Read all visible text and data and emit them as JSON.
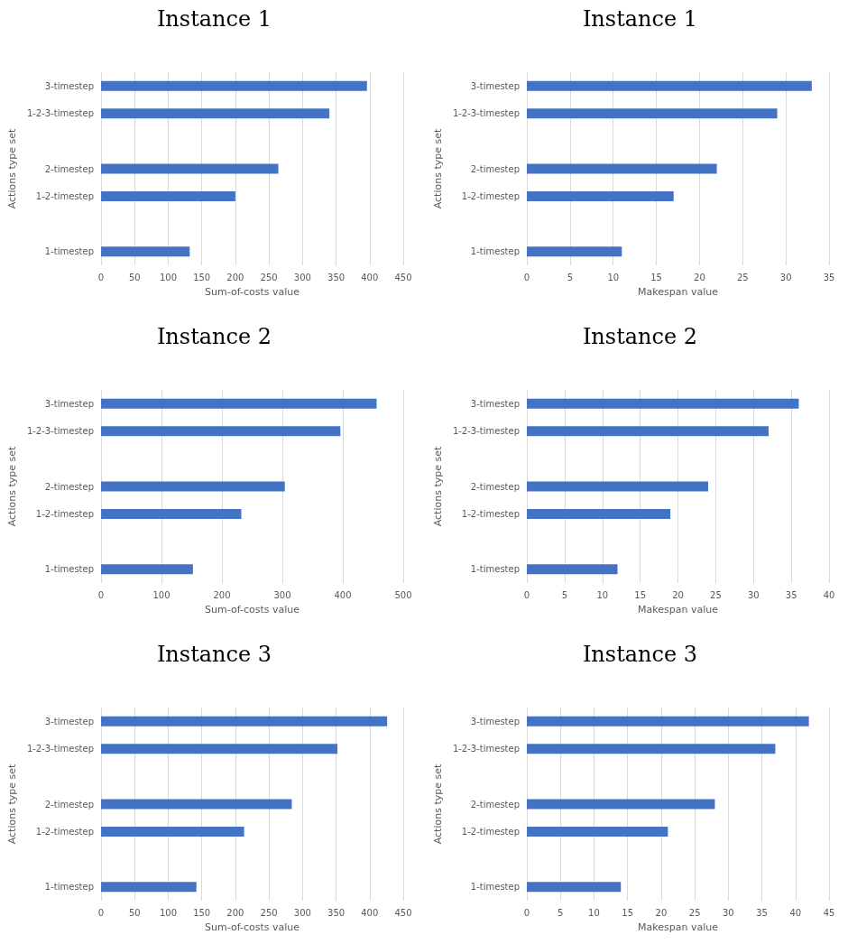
{
  "chart_data": [
    {
      "type": "bar",
      "orientation": "horizontal",
      "title": "Instance 1",
      "xlabel": "Sum-of-costs value",
      "ylabel": "Actions type set",
      "categories": [
        "3-timestep",
        "1-2-3-timestep",
        null,
        "2-timestep",
        "1-2-timestep",
        null,
        "1-timestep"
      ],
      "values": [
        396,
        340,
        null,
        264,
        200,
        null,
        132
      ],
      "color": "#4472c4",
      "xlim": [
        0,
        450
      ],
      "xticks": [
        0,
        50,
        100,
        150,
        200,
        250,
        300,
        350,
        400,
        450
      ],
      "grid": "x"
    },
    {
      "type": "bar",
      "orientation": "horizontal",
      "title": "Instance 1",
      "xlabel": "Makespan value",
      "ylabel": "Actions type set",
      "categories": [
        "3-timestep",
        "1-2-3-timestep",
        null,
        "2-timestep",
        "1-2-timestep",
        null,
        "1-timestep"
      ],
      "values": [
        33,
        29,
        null,
        22,
        17,
        null,
        11
      ],
      "color": "#4472c4",
      "xlim": [
        0,
        35
      ],
      "xticks": [
        0,
        5,
        10,
        15,
        20,
        25,
        30,
        35
      ],
      "grid": "x"
    },
    {
      "type": "bar",
      "orientation": "horizontal",
      "title": "Instance 2",
      "xlabel": "Sum-of-costs value",
      "ylabel": "Actions type set",
      "categories": [
        "3-timestep",
        "1-2-3-timestep",
        null,
        "2-timestep",
        "1-2-timestep",
        null,
        "1-timestep"
      ],
      "values": [
        456,
        396,
        null,
        304,
        232,
        null,
        152
      ],
      "color": "#4472c4",
      "xlim": [
        0,
        500
      ],
      "xticks": [
        0,
        100,
        200,
        300,
        400,
        500
      ],
      "grid": "x"
    },
    {
      "type": "bar",
      "orientation": "horizontal",
      "title": "Instance 2",
      "xlabel": "Makespan value",
      "ylabel": "Actions type set",
      "categories": [
        "3-timestep",
        "1-2-3-timestep",
        null,
        "2-timestep",
        "1-2-timestep",
        null,
        "1-timestep"
      ],
      "values": [
        36,
        32,
        null,
        24,
        19,
        null,
        12
      ],
      "color": "#4472c4",
      "xlim": [
        0,
        40
      ],
      "xticks": [
        0,
        5,
        10,
        15,
        20,
        25,
        30,
        35,
        40
      ],
      "grid": "x"
    },
    {
      "type": "bar",
      "orientation": "horizontal",
      "title": "Instance 3",
      "xlabel": "Sum-of-costs value",
      "ylabel": "Actions type set",
      "categories": [
        "3-timestep",
        "1-2-3-timestep",
        null,
        "2-timestep",
        "1-2-timestep",
        null,
        "1-timestep"
      ],
      "values": [
        426,
        352,
        null,
        284,
        213,
        null,
        142
      ],
      "color": "#4472c4",
      "xlim": [
        0,
        450
      ],
      "xticks": [
        0,
        50,
        100,
        150,
        200,
        250,
        300,
        350,
        400,
        450
      ],
      "grid": "x"
    },
    {
      "type": "bar",
      "orientation": "horizontal",
      "title": "Instance 3",
      "xlabel": "Makespan value",
      "ylabel": "Actions type set",
      "categories": [
        "3-timestep",
        "1-2-3-timestep",
        null,
        "2-timestep",
        "1-2-timestep",
        null,
        "1-timestep"
      ],
      "values": [
        42,
        37,
        null,
        28,
        21,
        null,
        14
      ],
      "color": "#4472c4",
      "xlim": [
        0,
        45
      ],
      "xticks": [
        0,
        5,
        10,
        15,
        20,
        25,
        30,
        35,
        40,
        45
      ],
      "grid": "x"
    }
  ]
}
